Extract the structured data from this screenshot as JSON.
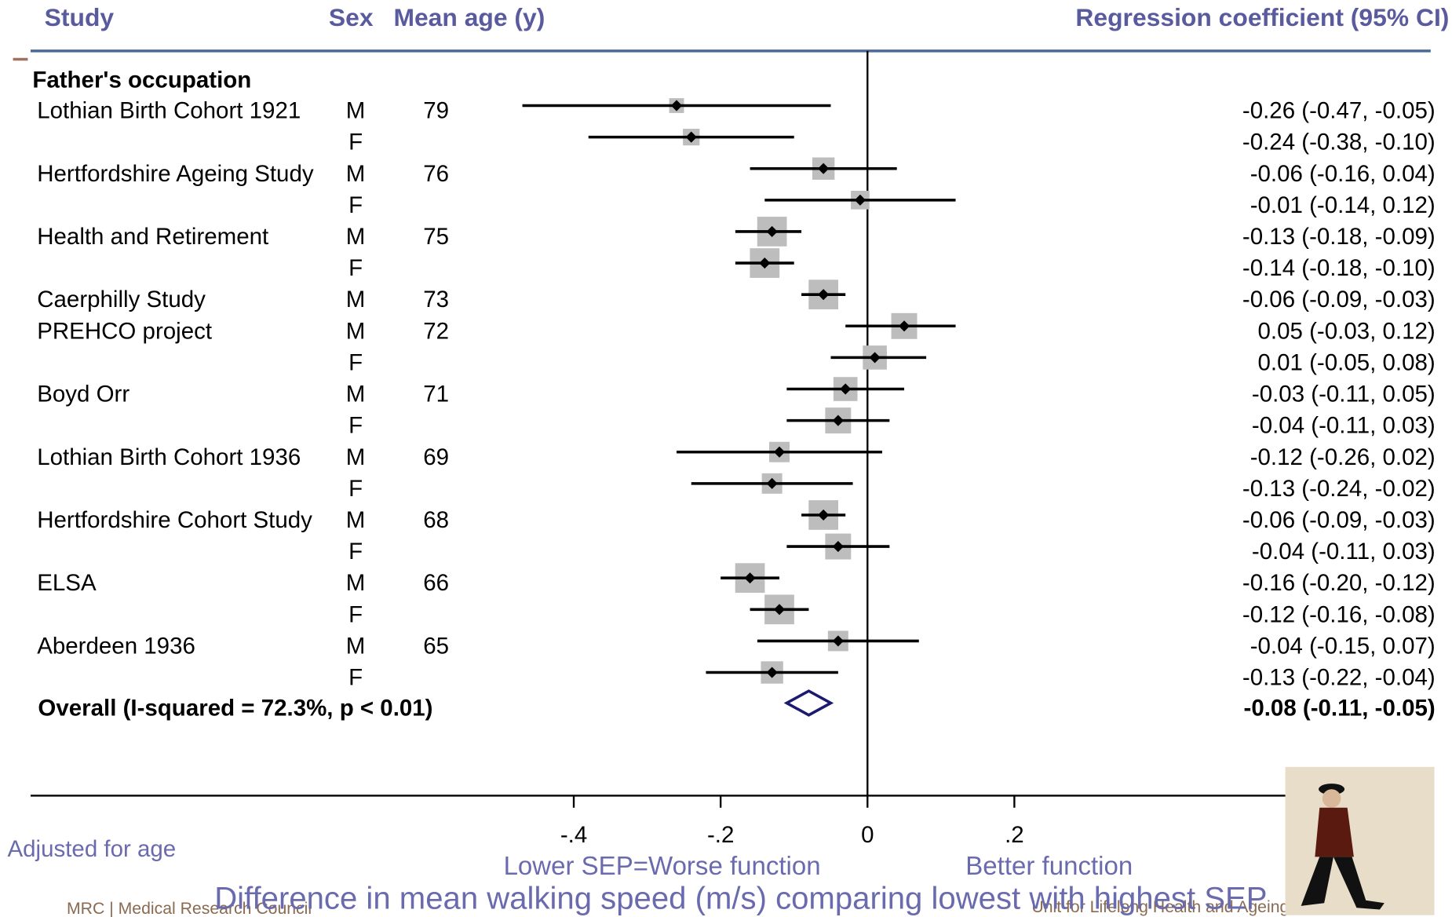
{
  "chart_data": {
    "type": "forest",
    "headers": {
      "study": "Study",
      "sex": "Sex",
      "age": "Mean age (y)",
      "estimate": "Regression coefficient (95% CI)"
    },
    "section": "Father's occupation",
    "studies": [
      "Lothian Birth Cohort 1921",
      null,
      "Hertfordshire Ageing Study",
      null,
      "Health and Retirement",
      null,
      "Caerphilly Study",
      "PREHCO project",
      null,
      "Boyd Orr",
      null,
      "Lothian Birth Cohort 1936",
      null,
      "Hertfordshire Cohort Study",
      null,
      "ELSA",
      null,
      "Aberdeen 1936",
      null
    ],
    "sex": [
      "M",
      "F",
      "M",
      "F",
      "M",
      "F",
      "M",
      "M",
      "F",
      "M",
      "F",
      "M",
      "F",
      "M",
      "F",
      "M",
      "F",
      "M",
      "F"
    ],
    "ages": [
      79,
      null,
      76,
      null,
      75,
      null,
      73,
      72,
      null,
      71,
      null,
      69,
      null,
      68,
      null,
      66,
      null,
      65,
      null
    ],
    "values": [
      -0.26,
      -0.24,
      -0.06,
      -0.01,
      -0.13,
      -0.14,
      -0.06,
      0.05,
      0.01,
      -0.03,
      -0.04,
      -0.12,
      -0.13,
      -0.06,
      -0.04,
      -0.16,
      -0.12,
      -0.04,
      -0.13
    ],
    "lower": [
      -0.47,
      -0.38,
      -0.16,
      -0.14,
      -0.18,
      -0.18,
      -0.09,
      -0.03,
      -0.05,
      -0.11,
      -0.11,
      -0.26,
      -0.24,
      -0.09,
      -0.11,
      -0.2,
      -0.16,
      -0.15,
      -0.22
    ],
    "upper": [
      -0.05,
      -0.1,
      0.04,
      0.12,
      -0.09,
      -0.1,
      -0.03,
      0.12,
      0.08,
      0.05,
      0.03,
      0.02,
      -0.02,
      -0.03,
      0.03,
      -0.12,
      -0.08,
      0.07,
      -0.04
    ],
    "value_labels": [
      "-0.26 (-0.47, -0.05)",
      "-0.24 (-0.38, -0.10)",
      "-0.06 (-0.16, 0.04)",
      "-0.01 (-0.14, 0.12)",
      "-0.13 (-0.18, -0.09)",
      "-0.14 (-0.18, -0.10)",
      "-0.06 (-0.09, -0.03)",
      "0.05 (-0.03, 0.12)",
      "0.01 (-0.05, 0.08)",
      "-0.03 (-0.11, 0.05)",
      "-0.04 (-0.11, 0.03)",
      "-0.12 (-0.26, 0.02)",
      "-0.13 (-0.24, -0.02)",
      "-0.06 (-0.09, -0.03)",
      "-0.04 (-0.11, 0.03)",
      "-0.16 (-0.20, -0.12)",
      "-0.12 (-0.16, -0.08)",
      "-0.04 (-0.15, 0.07)",
      "-0.13 (-0.22, -0.04)"
    ],
    "weights": [
      1.9,
      2.4,
      4.3,
      3.0,
      7.6,
      7.6,
      7.6,
      5.8,
      5.0,
      5.0,
      5.8,
      3.6,
      3.6,
      7.6,
      5.8,
      7.6,
      7.6,
      3.6,
      4.3
    ],
    "overall": {
      "label": "Overall (I-squared = 72.3%, p < 0.01)",
      "value": -0.08,
      "lower": -0.11,
      "upper": -0.05,
      "value_label": "-0.08 (-0.11, -0.05)"
    },
    "xlim": [
      -0.6,
      0.4
    ],
    "xticks": [
      {
        "value": -0.4,
        "label": "-.4"
      },
      {
        "value": -0.2,
        "label": "-.2"
      },
      0,
      {
        "value": 0.2,
        "label": ".2"
      }
    ],
    "xlabel": "Difference in mean walking speed (m/s) comparing lowest with highest SEP",
    "left_note": "Lower SEP=Worse function",
    "right_note": "Better function",
    "footnote": "Adjusted for age",
    "footer_left": "MRC | Medical Research Council",
    "footer_right": "Unit for Lifelong Health and Ageing",
    "marker_color": "#000000",
    "box_color": "#bdbdbd",
    "diamond_color": "#1a1a70"
  }
}
